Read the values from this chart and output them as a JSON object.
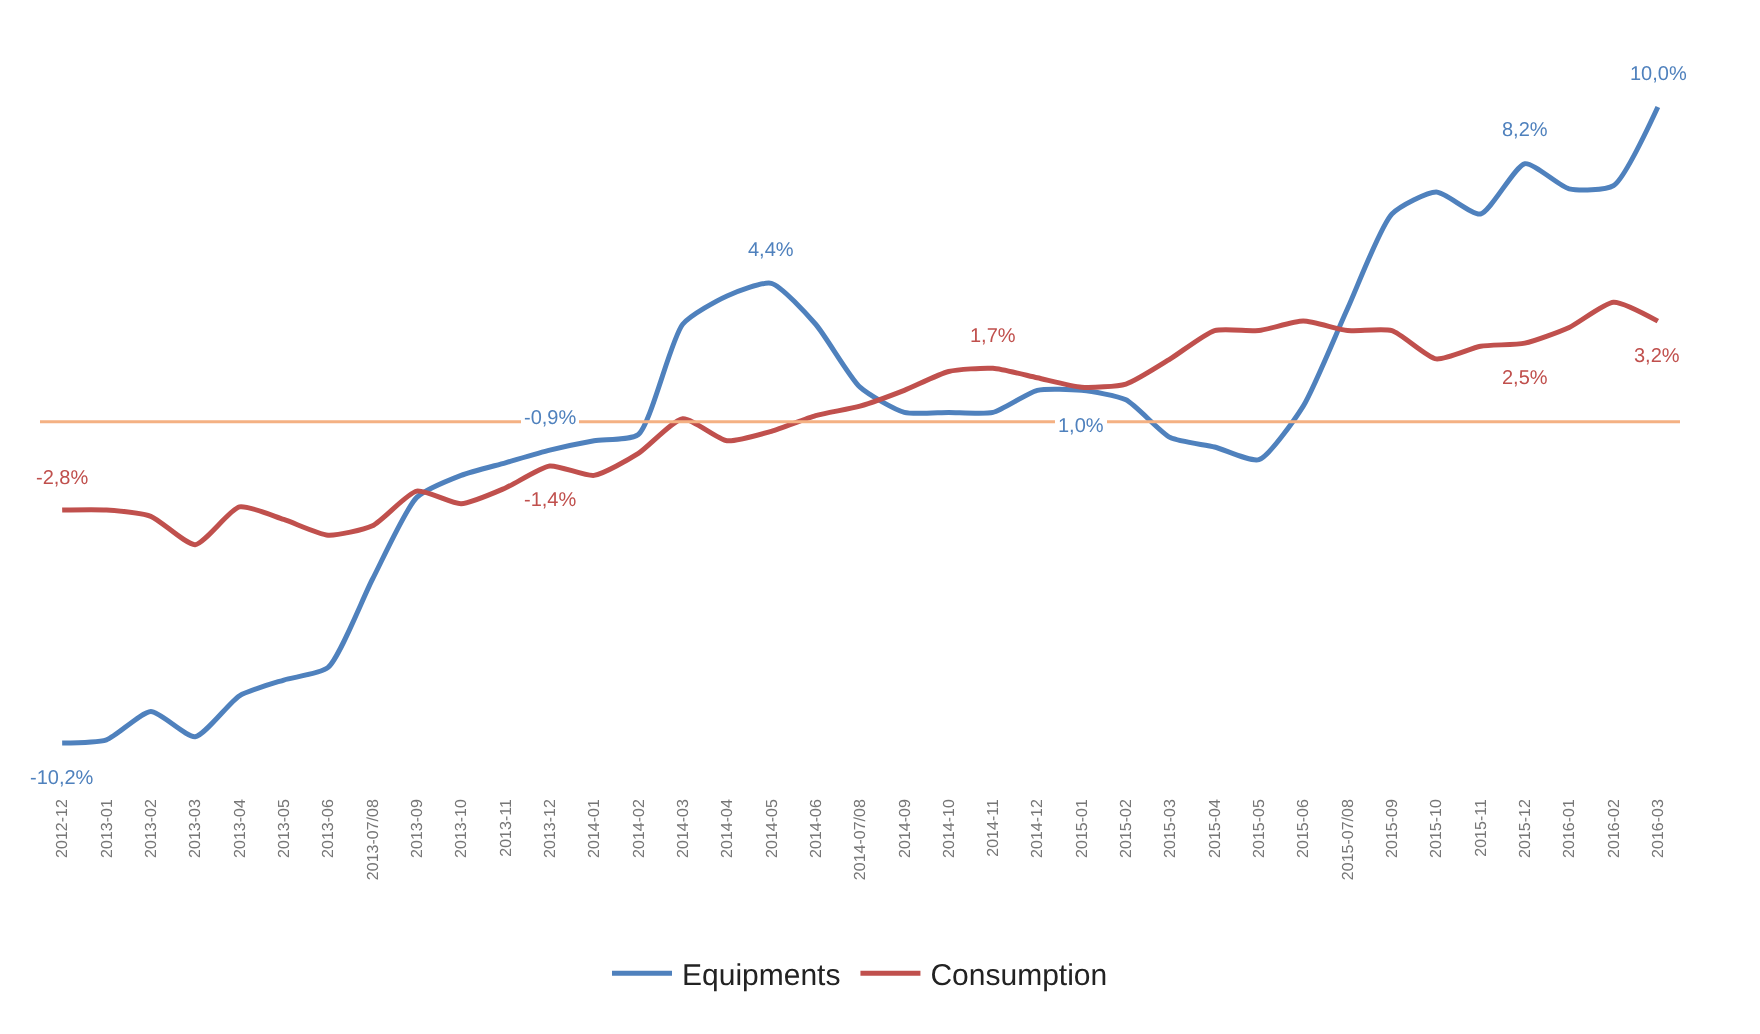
{
  "chart_data": {
    "type": "line",
    "categories": [
      "2012-12",
      "2013-01",
      "2013-02",
      "2013-03",
      "2013-04",
      "2013-05",
      "2013-06",
      "2013-07/08",
      "2013-09",
      "2013-10",
      "2013-11",
      "2013-12",
      "2014-01",
      "2014-02",
      "2014-03",
      "2014-04",
      "2014-05",
      "2014-06",
      "2014-07/08",
      "2014-09",
      "2014-10",
      "2014-11",
      "2014-12",
      "2015-01",
      "2015-02",
      "2015-03",
      "2015-04",
      "2015-05",
      "2015-06",
      "2015-07/08",
      "2015-09",
      "2015-10",
      "2015-11",
      "2015-12",
      "2016-01",
      "2016-02",
      "2016-03"
    ],
    "series": [
      {
        "name": "Equipments",
        "color": "#4f81bd",
        "values": [
          -10.2,
          -10.1,
          -9.2,
          -10.0,
          -8.7,
          -8.2,
          -7.8,
          -5.0,
          -2.4,
          -1.7,
          -1.3,
          -0.9,
          -0.6,
          -0.4,
          3.1,
          4.0,
          4.4,
          3.1,
          1.1,
          0.3,
          0.3,
          0.3,
          1.0,
          1.0,
          0.7,
          -0.5,
          -0.8,
          -1.2,
          0.5,
          3.6,
          6.6,
          7.3,
          6.6,
          8.2,
          7.4,
          7.5,
          10.0
        ],
        "value_labels": [
          "-10,2%",
          null,
          null,
          null,
          null,
          null,
          null,
          null,
          null,
          null,
          null,
          "-0,9%",
          null,
          null,
          null,
          null,
          "4,4%",
          null,
          null,
          null,
          null,
          null,
          null,
          "1,0%",
          null,
          null,
          null,
          null,
          null,
          null,
          null,
          null,
          null,
          "8,2%",
          null,
          null,
          "10,0%"
        ]
      },
      {
        "name": "Consumption",
        "color": "#c0504d",
        "values": [
          -2.8,
          -2.8,
          -3.0,
          -3.9,
          -2.7,
          -3.1,
          -3.6,
          -3.3,
          -2.2,
          -2.6,
          -2.1,
          -1.4,
          -1.7,
          -1.0,
          0.1,
          -0.6,
          -0.3,
          0.2,
          0.5,
          1.0,
          1.6,
          1.7,
          1.4,
          1.1,
          1.2,
          2.0,
          2.9,
          2.9,
          3.2,
          2.9,
          2.9,
          2.0,
          2.4,
          2.5,
          3.0,
          3.8,
          3.2
        ],
        "value_labels": [
          "-2,8%",
          null,
          null,
          null,
          null,
          null,
          null,
          null,
          null,
          null,
          null,
          "-1,4%",
          null,
          null,
          null,
          null,
          null,
          null,
          null,
          null,
          null,
          "1,7%",
          null,
          null,
          null,
          null,
          null,
          null,
          null,
          null,
          null,
          null,
          null,
          "2,5%",
          null,
          null,
          "3,2%"
        ]
      }
    ],
    "ref_lines": [
      {
        "axis": "y",
        "value": 0,
        "color": "#f4b183"
      }
    ],
    "legend": "bottom",
    "marker": "none",
    "line_style": "solid"
  }
}
